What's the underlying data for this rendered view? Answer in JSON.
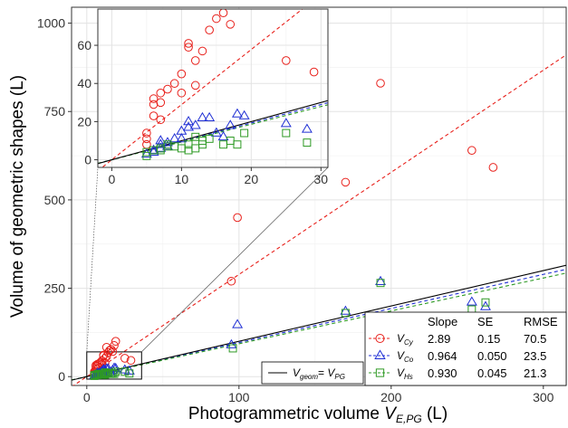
{
  "chart_data": {
    "type": "scatter",
    "xlabel": "Photogrammetric volume",
    "xlabel_symbol": "V",
    "xlabel_subscript": "E,PG",
    "xlabel_unit": "(L)",
    "ylabel": "Volume of geometric shapes (L)",
    "xlim": [
      -10,
      315
    ],
    "ylim": [
      -25,
      1045
    ],
    "xticks": [
      0,
      100,
      200,
      300
    ],
    "yticks": [
      0,
      250,
      500,
      750,
      1000
    ],
    "grid": true,
    "inset": {
      "xlim": [
        -2,
        31
      ],
      "ylim": [
        -4,
        79
      ],
      "xticks": [
        0,
        10,
        20,
        30
      ],
      "yticks": [
        0,
        20,
        40,
        60
      ],
      "zoom_box": {
        "x": [
          0,
          36
        ],
        "y": [
          -7,
          70
        ]
      }
    },
    "reference_line": {
      "label": "= ",
      "symbol_left": "V",
      "sub_left": "geom",
      "symbol_right": "V",
      "sub_right": "PG",
      "slope": 1,
      "color": "#000000"
    },
    "legend": {
      "position": "bottom-right",
      "headers": [
        "Slope",
        "SE",
        "RMSE"
      ]
    },
    "series": [
      {
        "symbol": "V",
        "subscript": "Cy",
        "marker": "circle",
        "color": "#e8201b",
        "slope": 2.89,
        "slope_label": "2.89",
        "se_label": "0.15",
        "rmse_label": "70.5",
        "points": [
          [
            5,
            8
          ],
          [
            5,
            11
          ],
          [
            5,
            14
          ],
          [
            6,
            23
          ],
          [
            6,
            29
          ],
          [
            6,
            32
          ],
          [
            7,
            21
          ],
          [
            7,
            30
          ],
          [
            7,
            35
          ],
          [
            8,
            37
          ],
          [
            9,
            40
          ],
          [
            10,
            45
          ],
          [
            10,
            35
          ],
          [
            11,
            59
          ],
          [
            11,
            61
          ],
          [
            12,
            52
          ],
          [
            12,
            39
          ],
          [
            13,
            57
          ],
          [
            13,
            83
          ],
          [
            14,
            68
          ],
          [
            15,
            74
          ],
          [
            16,
            77
          ],
          [
            17,
            71
          ],
          [
            18,
            88
          ],
          [
            19,
            100
          ],
          [
            25,
            52
          ],
          [
            29,
            46
          ],
          [
            95,
            270
          ],
          [
            99,
            450
          ],
          [
            170,
            550
          ],
          [
            193,
            830
          ],
          [
            253,
            640
          ],
          [
            267,
            592
          ]
        ]
      },
      {
        "symbol": "V",
        "subscript": "Co",
        "marker": "triangle",
        "color": "#1f2fd4",
        "slope": 0.964,
        "slope_label": "0.964",
        "se_label": "0.050",
        "rmse_label": "23.5",
        "points": [
          [
            5,
            3
          ],
          [
            6,
            4
          ],
          [
            6,
            5
          ],
          [
            7,
            6
          ],
          [
            7,
            8
          ],
          [
            7,
            10
          ],
          [
            8,
            7
          ],
          [
            8,
            9
          ],
          [
            9,
            11
          ],
          [
            10,
            11
          ],
          [
            10,
            15
          ],
          [
            11,
            20
          ],
          [
            11,
            17
          ],
          [
            12,
            18
          ],
          [
            13,
            22
          ],
          [
            14,
            22
          ],
          [
            15,
            14
          ],
          [
            16,
            12
          ],
          [
            17,
            18
          ],
          [
            18,
            24
          ],
          [
            19,
            23
          ],
          [
            25,
            19
          ],
          [
            28,
            16
          ],
          [
            95,
            90
          ],
          [
            99,
            147
          ],
          [
            170,
            185
          ],
          [
            193,
            269
          ],
          [
            253,
            211
          ],
          [
            262,
            198
          ]
        ]
      },
      {
        "symbol": "V",
        "subscript": "Hs",
        "marker": "square",
        "color": "#2e9a24",
        "slope": 0.93,
        "slope_label": "0.930",
        "se_label": "0.045",
        "rmse_label": "21.3",
        "points": [
          [
            5,
            2
          ],
          [
            5,
            4
          ],
          [
            6,
            5
          ],
          [
            7,
            6
          ],
          [
            7,
            5
          ],
          [
            8,
            7
          ],
          [
            8,
            8
          ],
          [
            9,
            7
          ],
          [
            10,
            6
          ],
          [
            11,
            5
          ],
          [
            11,
            8
          ],
          [
            12,
            6
          ],
          [
            12,
            12
          ],
          [
            13,
            8
          ],
          [
            13,
            10
          ],
          [
            14,
            11
          ],
          [
            16,
            8
          ],
          [
            17,
            10
          ],
          [
            18,
            8
          ],
          [
            19,
            14
          ],
          [
            25,
            14
          ],
          [
            28,
            9
          ],
          [
            96,
            80
          ],
          [
            170,
            180
          ],
          [
            193,
            265
          ],
          [
            253,
            190
          ],
          [
            262,
            210
          ]
        ]
      }
    ]
  }
}
